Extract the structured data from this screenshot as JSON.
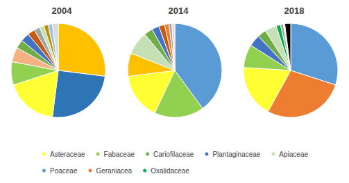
{
  "chart_data": [
    {
      "type": "pie",
      "title": "2004",
      "legend": "bottom",
      "categories": [
        null,
        null,
        "Asteraceae",
        "Fabaceae",
        null,
        "Cariofilaceae",
        "Plantaginaceae",
        null,
        null,
        "Apiaceae",
        null,
        null,
        null
      ],
      "values": [
        27,
        25,
        18,
        8,
        5,
        3,
        3,
        2.5,
        2,
        1.5,
        1.5,
        1.5,
        2
      ],
      "colors": [
        "#FFC000",
        "#2E75B6",
        "#FFFF33",
        "#92D050",
        "#F4B183",
        "#70AD47",
        "#4472C4",
        "#C55A11",
        "#A5A5A5",
        "#C5E0B4",
        "#BF9000",
        "#9DC3E6",
        "#DBDBDB"
      ]
    },
    {
      "type": "pie",
      "title": "2014",
      "legend": "bottom",
      "categories": [
        "Poaceae",
        "Fabaceae",
        "Asteraceae",
        null,
        "Apiaceae",
        "Cariofilaceae",
        "Plantaginaceae",
        null,
        "Geraniacea",
        null,
        null
      ],
      "values": [
        40,
        17,
        16,
        8,
        8,
        3,
        2.5,
        2,
        1.5,
        1,
        1
      ],
      "colors": [
        "#5B9BD5",
        "#92D050",
        "#FFFF33",
        "#FFC000",
        "#C5E0B4",
        "#70AD47",
        "#4472C4",
        "#C55A11",
        "#ED7D31",
        "#A5A5A5",
        "#DBDBDB"
      ]
    },
    {
      "type": "pie",
      "title": "2018",
      "legend": "bottom",
      "categories": [
        "Poaceae",
        "Geraniacea",
        "Asteraceae",
        "Fabaceae",
        "Plantaginaceae",
        "Cariofilaceae",
        "Apiaceae",
        "Oxalidaceae",
        null,
        null,
        null
      ],
      "values": [
        30,
        28,
        18,
        8,
        4,
        3,
        4,
        1.5,
        1,
        0.5,
        2
      ],
      "colors": [
        "#5B9BD5",
        "#ED7D31",
        "#FFFF33",
        "#92D050",
        "#4472C4",
        "#70AD47",
        "#C5E0B4",
        "#00B050",
        "#A5A5A5",
        "#DBDBDB",
        "#000000"
      ]
    }
  ]
}
